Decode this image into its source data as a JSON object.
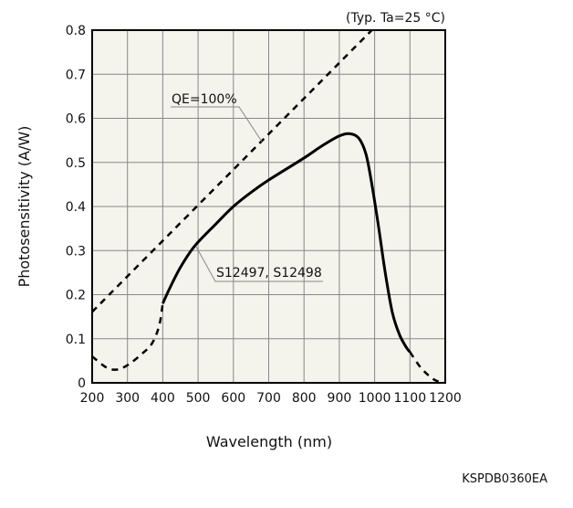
{
  "chart_data": {
    "type": "line",
    "condition": "(Typ. Ta=25 °C)",
    "xlabel": "Wavelength (nm)",
    "ylabel": "Photosensitivity (A/W)",
    "xlim": [
      200,
      1200
    ],
    "ylim": [
      0,
      0.8
    ],
    "grid": true,
    "xticks": [
      "200",
      "300",
      "400",
      "500",
      "600",
      "700",
      "800",
      "900",
      "1000",
      "1100",
      "1200"
    ],
    "yticks": [
      "0",
      "0.1",
      "0.2",
      "0.3",
      "0.4",
      "0.5",
      "0.6",
      "0.7",
      "0.8"
    ],
    "series": [
      {
        "name": "QE=100%",
        "style": "dashed",
        "x": [
          200,
          992
        ],
        "y": [
          0.161,
          0.8
        ]
      },
      {
        "name": "S12497, S12498 (low-wavelength extrapolation)",
        "style": "dashed",
        "x": [
          200,
          240,
          270,
          300,
          340,
          370,
          390,
          400
        ],
        "y": [
          0.06,
          0.035,
          0.03,
          0.04,
          0.065,
          0.09,
          0.13,
          0.18
        ]
      },
      {
        "name": "S12497, S12498",
        "style": "solid",
        "x": [
          400,
          420,
          450,
          490,
          550,
          600,
          650,
          700,
          800,
          850,
          900,
          930,
          955,
          975,
          990,
          1010,
          1030,
          1050,
          1070,
          1090,
          1100
        ],
        "y": [
          0.18,
          0.215,
          0.262,
          0.31,
          0.36,
          0.4,
          0.432,
          0.46,
          0.51,
          0.537,
          0.56,
          0.565,
          0.555,
          0.52,
          0.46,
          0.36,
          0.25,
          0.16,
          0.11,
          0.08,
          0.07
        ]
      },
      {
        "name": "S12497, S12498 (high-wavelength extrapolation)",
        "style": "dashed",
        "x": [
          1100,
          1130,
          1160,
          1180,
          1200
        ],
        "y": [
          0.07,
          0.035,
          0.012,
          0.003,
          0
        ]
      }
    ],
    "annotations": [
      {
        "text": "QE=100%",
        "points_to": [
          680,
          0.55
        ]
      },
      {
        "text": "S12497, S12498",
        "points_to": [
          490,
          0.31
        ]
      }
    ],
    "figure_code": "KSPDB0360EA"
  }
}
